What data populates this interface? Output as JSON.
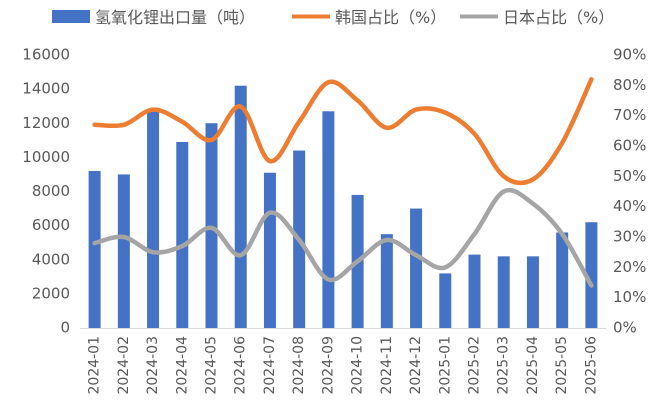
{
  "chart_data": {
    "type": "bar",
    "categories": [
      "2024-01",
      "2024-02",
      "2024-03",
      "2024-04",
      "2024-05",
      "2024-06",
      "2024-07",
      "2024-08",
      "2024-09",
      "2024-10",
      "2024-11",
      "2024-12",
      "2025-01",
      "2025-02",
      "2025-03",
      "2025-04",
      "2025-05",
      "2025-06"
    ],
    "series": [
      {
        "name": "氢氧化锂出口量（吨）",
        "type": "bar",
        "axis": "left",
        "color": "#4472C4",
        "values": [
          9200,
          9000,
          12800,
          10900,
          12000,
          14200,
          9100,
          10400,
          12700,
          7800,
          5500,
          7000,
          3200,
          4300,
          4200,
          4200,
          5600,
          6200
        ]
      },
      {
        "name": "韩国占比（%）",
        "type": "line",
        "axis": "right",
        "color": "#ED7D31",
        "values": [
          67,
          67,
          72,
          68,
          62,
          73,
          55,
          68,
          81,
          75,
          66,
          72,
          71,
          64,
          50,
          49,
          61,
          82
        ]
      },
      {
        "name": "日本占比（%）",
        "type": "line",
        "axis": "right",
        "color": "#A5A5A5",
        "values": [
          28,
          30,
          25,
          27,
          33,
          24,
          38,
          29,
          16,
          22,
          29,
          24,
          20,
          31,
          45,
          41,
          31,
          14
        ]
      }
    ],
    "y_left": {
      "range": [
        0,
        16000
      ],
      "tick_labels": [
        "0",
        "2000",
        "4000",
        "6000",
        "8000",
        "10000",
        "12000",
        "14000",
        "16000"
      ]
    },
    "y_right": {
      "range": [
        0,
        90
      ],
      "tick_labels": [
        "0%",
        "10%",
        "20%",
        "30%",
        "40%",
        "50%",
        "60%",
        "70%",
        "80%",
        "90%"
      ]
    },
    "legend": "top",
    "grid": false
  }
}
